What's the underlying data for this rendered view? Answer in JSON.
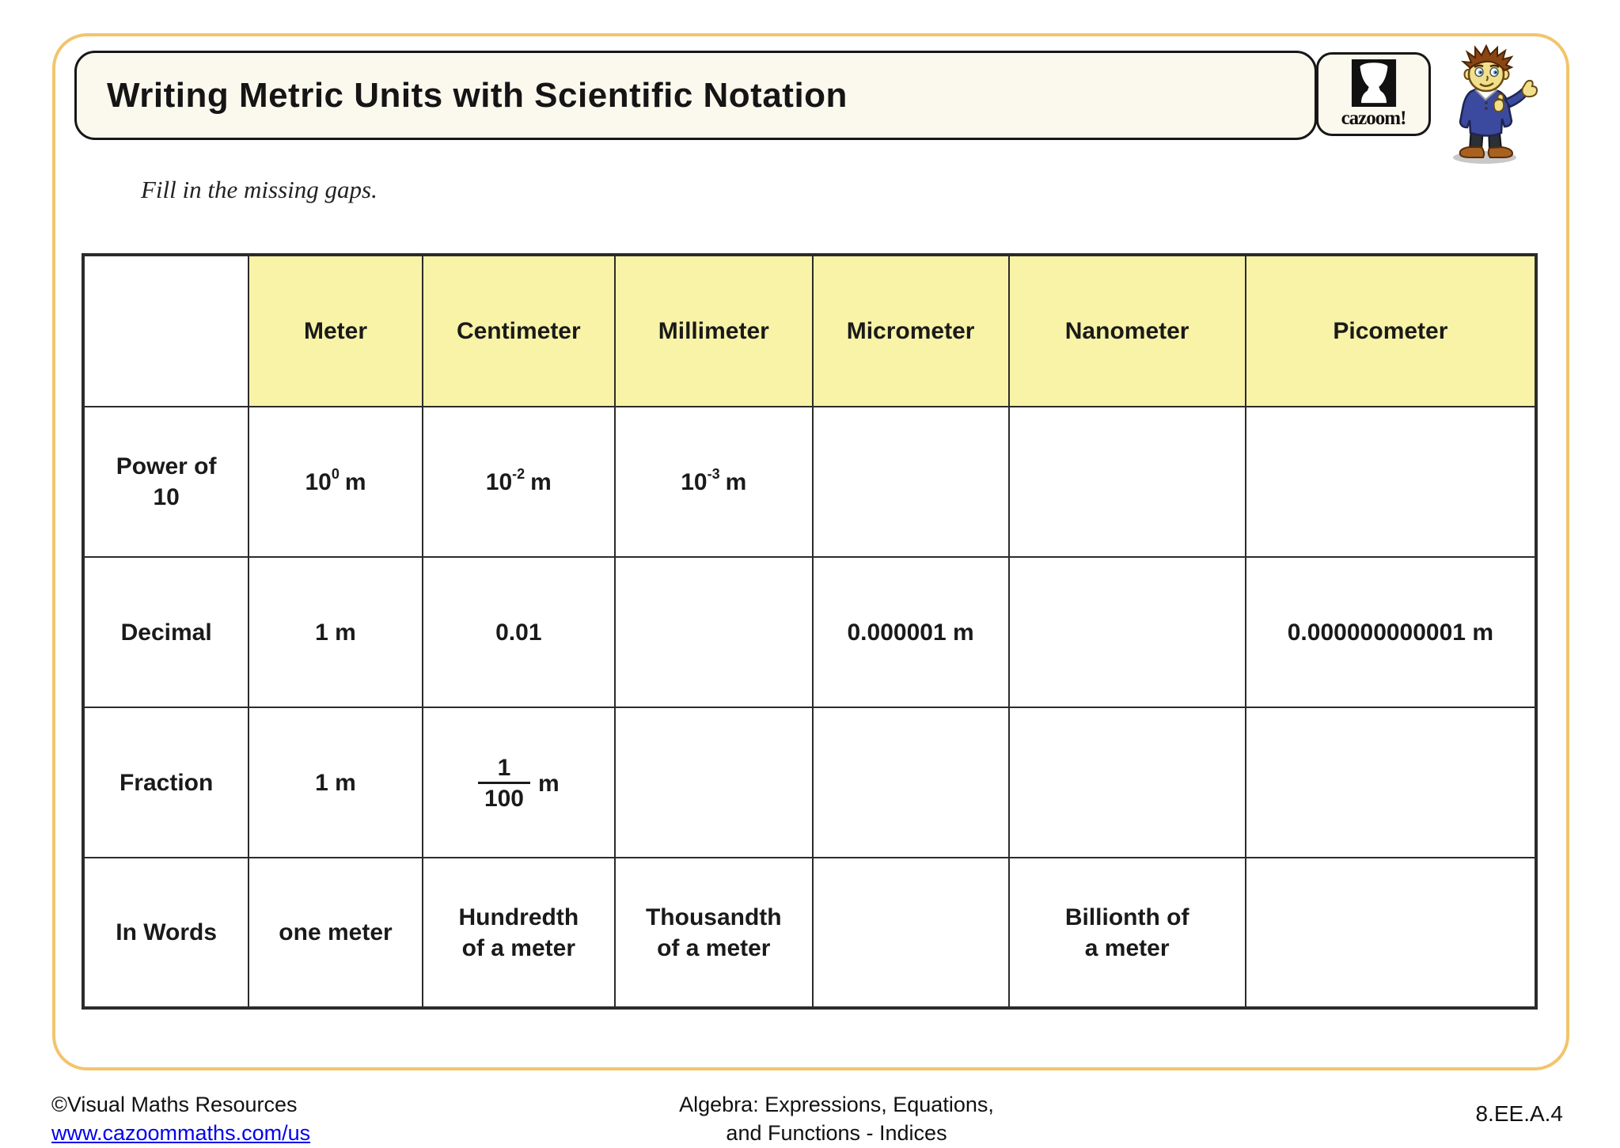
{
  "page": {
    "title": "Writing Metric Units with Scientific Notation",
    "instruction": "Fill in the missing gaps."
  },
  "logo": {
    "text": "cazoom!",
    "icon": "djembe-drum-icon",
    "mascot": "cartoon-boy-mascot"
  },
  "table": {
    "column_headers": [
      "Meter",
      "Centimeter",
      "Millimeter",
      "Micrometer",
      "Nanometer",
      "Picometer"
    ],
    "rows": [
      {
        "label": "Power of\n10",
        "cells": [
          {
            "power": {
              "base": "10",
              "exp": "0",
              "unit": "m"
            }
          },
          {
            "power": {
              "base": "10",
              "exp": "-2",
              "unit": "m"
            }
          },
          {
            "power": {
              "base": "10",
              "exp": "-3",
              "unit": "m"
            }
          },
          "",
          "",
          ""
        ]
      },
      {
        "label": "Decimal",
        "cells": [
          "1 m",
          "0.01",
          "",
          "0.000001 m",
          "",
          "0.000000000001 m"
        ]
      },
      {
        "label": "Fraction",
        "cells": [
          "1 m",
          {
            "fraction": {
              "num": "1",
              "den": "100",
              "unit": "m"
            }
          },
          "",
          "",
          "",
          ""
        ]
      },
      {
        "label": "In Words",
        "cells": [
          "one meter",
          "Hundredth\nof a meter",
          "Thousandth\nof a meter",
          "",
          "Billionth of\na meter",
          ""
        ]
      }
    ]
  },
  "footer": {
    "copyright": "©Visual Maths Resources",
    "link": "www.cazoommaths.com/us",
    "center_line1": "Algebra: Expressions, Equations,",
    "center_line2": "and Functions - Indices",
    "standard": "8.EE.A.4"
  },
  "colors": {
    "header_yellow": "#F8F3A6",
    "page_border": "#F2C46D",
    "title_bg": "#FBF8EE",
    "link_blue": "#0000EE",
    "table_border": "#2B2B2B",
    "text": "#1A1A1A"
  }
}
